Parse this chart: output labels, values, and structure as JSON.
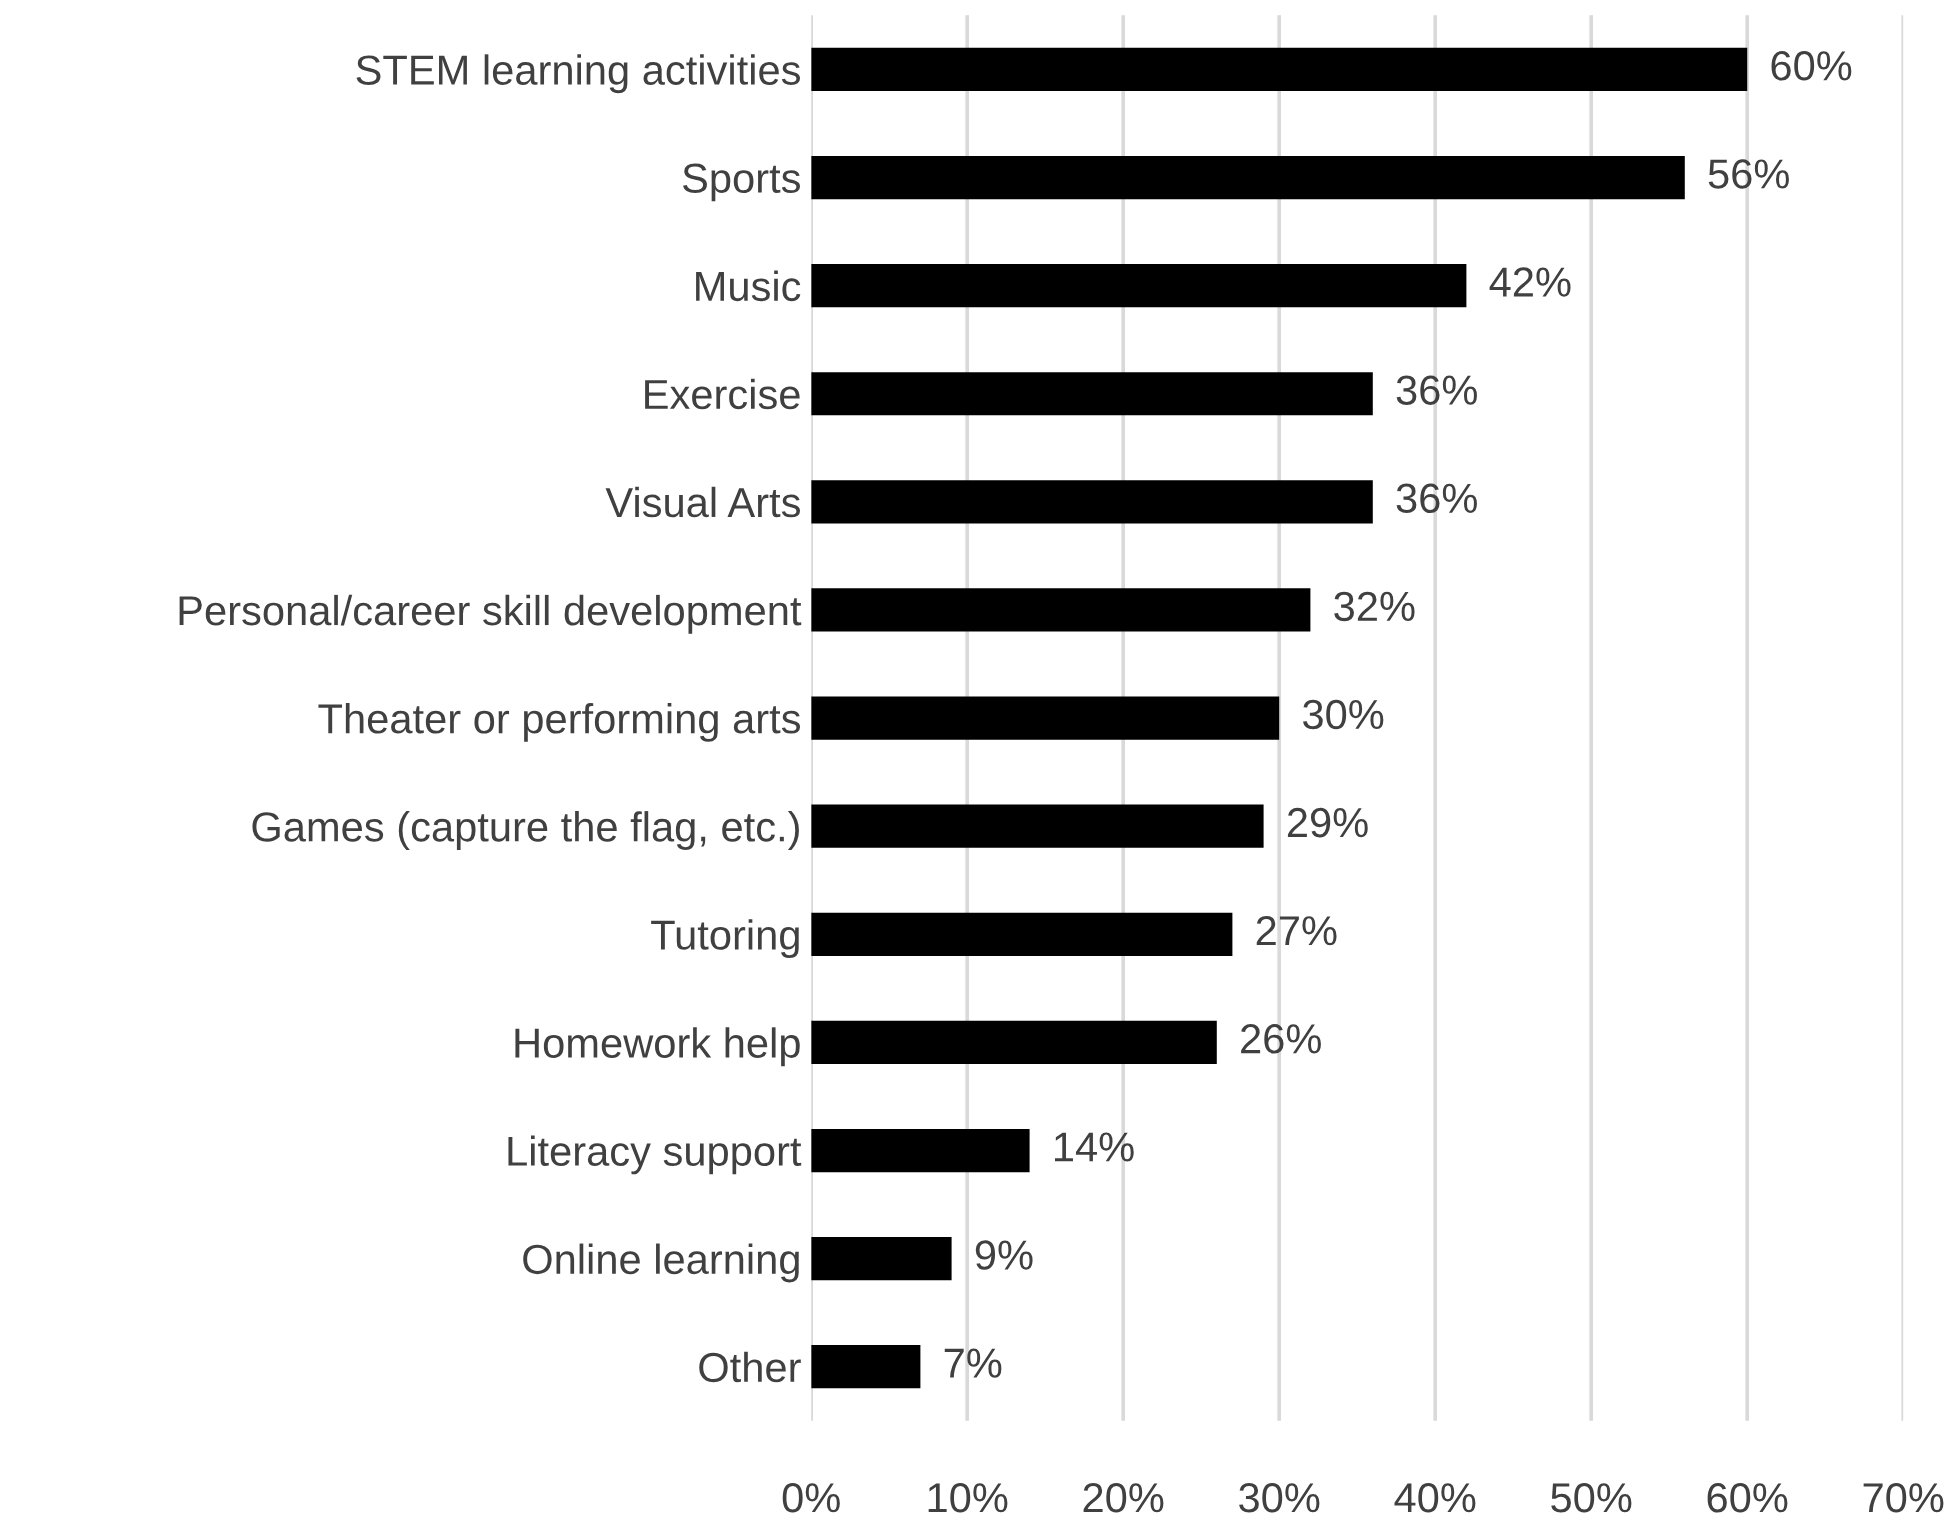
{
  "chart_data": {
    "type": "bar",
    "orientation": "horizontal",
    "categories": [
      "STEM learning activities",
      "Sports",
      "Music",
      "Exercise",
      "Visual Arts",
      "Personal/career skill development",
      "Theater or performing arts",
      "Games (capture the flag, etc.)",
      "Tutoring",
      "Homework help",
      "Literacy support",
      "Online learning",
      "Other"
    ],
    "values": [
      60,
      56,
      42,
      36,
      36,
      32,
      30,
      29,
      27,
      26,
      14,
      9,
      7
    ],
    "value_labels": [
      "60%",
      "56%",
      "42%",
      "36%",
      "36%",
      "32%",
      "30%",
      "29%",
      "27%",
      "26%",
      "14%",
      "9%",
      "7%"
    ],
    "color": "#000000",
    "xlim": [
      0,
      70
    ],
    "xticks": [
      {
        "value": 0,
        "label": "0%"
      },
      {
        "value": 10,
        "label": "10%"
      },
      {
        "value": 20,
        "label": "20%"
      },
      {
        "value": 30,
        "label": "30%"
      },
      {
        "value": 40,
        "label": "40%"
      },
      {
        "value": 50,
        "label": "50%"
      },
      {
        "value": 60,
        "label": "60%"
      },
      {
        "value": 70,
        "label": "70%"
      }
    ],
    "grid": "x"
  }
}
